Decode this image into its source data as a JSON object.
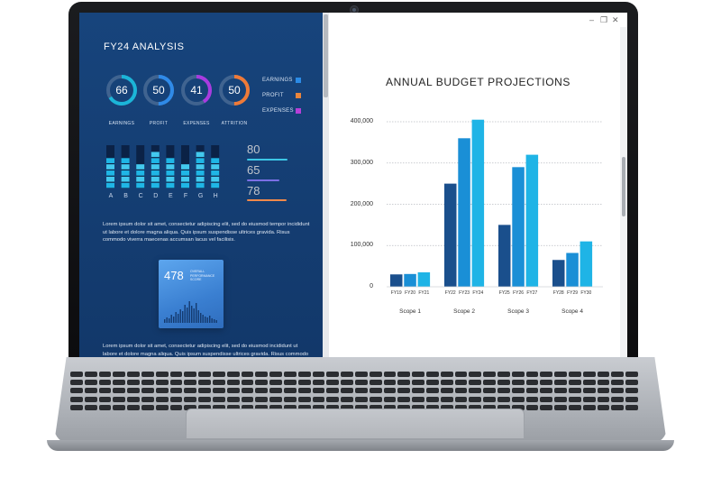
{
  "dashboard": {
    "title": "FY24 ANALYSIS",
    "gauges": [
      {
        "value": "66",
        "label": "EARNINGS",
        "fraction": 0.66,
        "color": "#1bb5d8"
      },
      {
        "value": "50",
        "label": "PROFIT",
        "fraction": 0.5,
        "color": "#2f8ae8"
      },
      {
        "value": "41",
        "label": "EXPENSES",
        "fraction": 0.41,
        "color": "#a83be0"
      },
      {
        "value": "50",
        "label": "ATTRITION",
        "fraction": 0.5,
        "color": "#ef7a38"
      }
    ],
    "legend": [
      {
        "label": "EARNINGS",
        "color": "#2b8be6"
      },
      {
        "label": "PROFIT",
        "color": "#e9853d"
      },
      {
        "label": "EXPENSES",
        "color": "#b63fd8"
      }
    ],
    "bar_letters": [
      "A",
      "B",
      "C",
      "D",
      "E",
      "F",
      "G",
      "H"
    ],
    "bar_levels": [
      0.72,
      0.78,
      0.62,
      0.86,
      0.7,
      0.58,
      0.8,
      0.66
    ],
    "metrics": [
      {
        "value": "80",
        "color": "#3cc7e6",
        "fraction": 0.8
      },
      {
        "value": "65",
        "color": "#7b6fe6",
        "fraction": 0.65
      },
      {
        "value": "78",
        "color": "#f0894a",
        "fraction": 0.78
      }
    ],
    "paragraph_1": "Lorem ipsum dolor sit amet, consectetur adipiscing elit, sed do eiusmod tempor incididunt ut labore et dolore magna aliqua. Quis ipsum suspendisse ultrices gravida. Risus commodo viverra maecenas accumsan lacus vel facilisis.",
    "performance_card": {
      "value": "478",
      "caption": "OVERALL PERFORMANCE SCORE"
    },
    "paragraph_2": "Lorem ipsum dolor sit amet, consectetur adipiscing elit, sed do eiusmod incididunt ut labore et dolore magna aliqua. Quis ipsum suspendisse ultrices gravida. Risus commodo viverra maecenas accumsan lacus vel facilisis."
  },
  "chart_data": {
    "type": "bar",
    "title": "ANNUAL BUDGET PROJECTIONS",
    "y_ticks": [
      "400,000",
      "300,000",
      "200,000",
      "100,000",
      "0"
    ],
    "ylim": [
      0,
      400000
    ],
    "grid": true,
    "groups": [
      {
        "name": "Scope 1",
        "categories": [
          "FY19",
          "FY20",
          "FY21"
        ],
        "values": [
          30000,
          31000,
          35000
        ]
      },
      {
        "name": "Scope 2",
        "categories": [
          "FY22",
          "FY23",
          "FY24"
        ],
        "values": [
          250000,
          360000,
          405000
        ]
      },
      {
        "name": "Scope 3",
        "categories": [
          "FY25",
          "FY26",
          "FY27"
        ],
        "values": [
          150000,
          290000,
          320000
        ]
      },
      {
        "name": "Scope 4",
        "categories": [
          "FY28",
          "FY29",
          "FY30"
        ],
        "values": [
          65000,
          82000,
          110000
        ]
      }
    ],
    "series_colors": [
      "#1a4f8c",
      "#1a8fd6",
      "#1fb4e6"
    ]
  }
}
